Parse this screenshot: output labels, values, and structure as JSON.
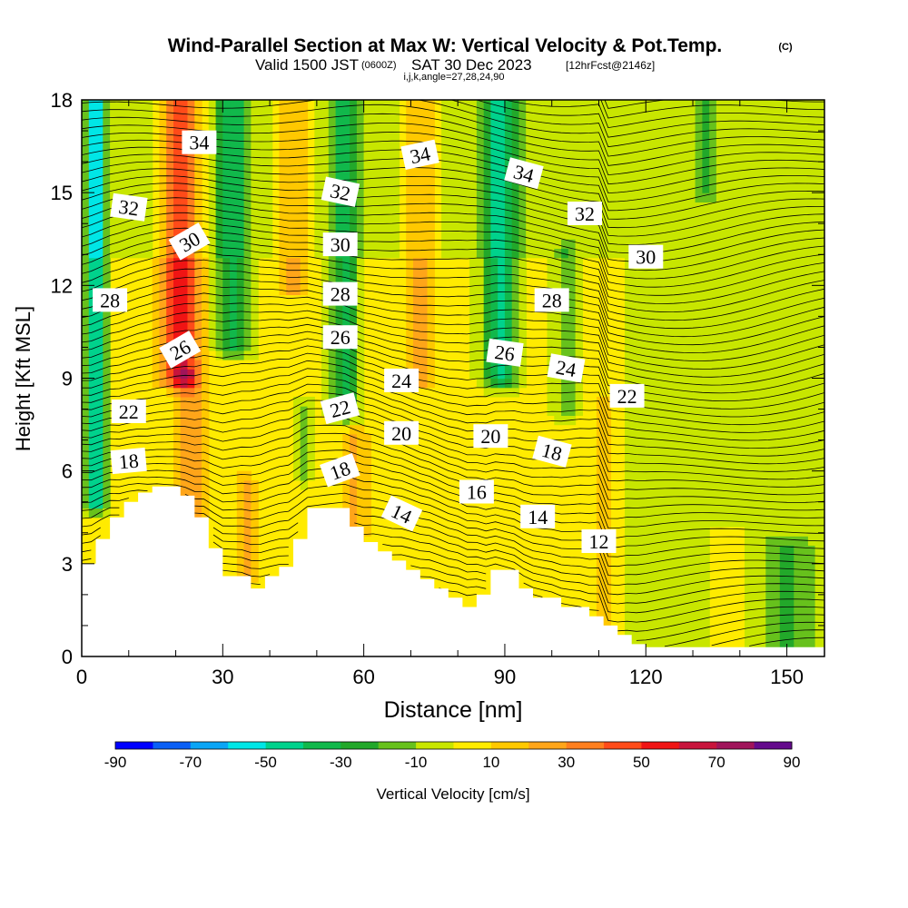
{
  "header": {
    "title": "Wind-Parallel Section at Max W: Vertical Velocity & Pot.Temp.",
    "copyright": "(C)",
    "valid_prefix": "Valid 1500 JST",
    "valid_utc": "(0600Z)",
    "valid_date": "SAT 30 Dec 2023",
    "forecast": "[12hrFcst@2146z]",
    "indices": "i,j,k,angle=27,28,24,90"
  },
  "chart_data": {
    "type": "heatmap",
    "title": "Wind-Parallel Section at Max W: Vertical Velocity & Pot.Temp.",
    "xlabel": "Distance [nm]",
    "ylabel": "Height [Kft MSL]",
    "xlim": [
      0,
      158
    ],
    "ylim": [
      0,
      18
    ],
    "x_ticks": [
      0,
      30,
      60,
      90,
      120,
      150
    ],
    "y_ticks": [
      0,
      3,
      6,
      9,
      12,
      15,
      18
    ],
    "colorbar": {
      "label": "Vertical Velocity [cm/s]",
      "tick_labels": [
        "-90",
        "-70",
        "-50",
        "-30",
        "-10",
        "10",
        "30",
        "50",
        "70",
        "90"
      ],
      "boundaries": [
        -90,
        -80,
        -70,
        -60,
        -50,
        -40,
        -30,
        -20,
        -10,
        0,
        10,
        20,
        30,
        40,
        50,
        60,
        70,
        80,
        90
      ],
      "colors": [
        "#0000ff",
        "#0a5ff5",
        "#0aa5f5",
        "#00e6e6",
        "#00d28c",
        "#11b84b",
        "#22a82a",
        "#67c11c",
        "#c8e600",
        "#ffeb00",
        "#ffc800",
        "#ffa519",
        "#ff7f1e",
        "#ff4b19",
        "#f01414",
        "#c8143c",
        "#a0145a",
        "#640a8c"
      ]
    },
    "velocity_features": [
      {
        "x": 3,
        "half_width": 2.0,
        "y_from": 5.0,
        "y_to": 18,
        "value": -55
      },
      {
        "x": 21,
        "half_width": 4.0,
        "y_from": 9.0,
        "y_to": 18,
        "value": 55
      },
      {
        "x": 23,
        "half_width": 3.0,
        "y_from": 4.5,
        "y_to": 9.0,
        "value": 25
      },
      {
        "x": 32,
        "half_width": 3.5,
        "y_from": 10.0,
        "y_to": 18,
        "value": -35
      },
      {
        "x": 35,
        "half_width": 2.0,
        "y_from": 2.5,
        "y_to": 5.5,
        "value": 25
      },
      {
        "x": 45,
        "half_width": 3.0,
        "y_from": 12.0,
        "y_to": 18,
        "value": 25
      },
      {
        "x": 47,
        "half_width": 1.5,
        "y_from": 6.0,
        "y_to": 8.0,
        "value": -20
      },
      {
        "x": 56,
        "half_width": 3.0,
        "y_from": 8.0,
        "y_to": 18,
        "value": -35
      },
      {
        "x": 58,
        "half_width": 3.0,
        "y_from": 4.0,
        "y_to": 7.0,
        "value": 20
      },
      {
        "x": 72,
        "half_width": 3.0,
        "y_from": 9.0,
        "y_to": 18,
        "value": 25
      },
      {
        "x": 89,
        "half_width": 3.5,
        "y_from": 9.0,
        "y_to": 18,
        "value": -45
      },
      {
        "x": 103,
        "half_width": 2.5,
        "y_from": 8.0,
        "y_to": 13.0,
        "value": -20
      },
      {
        "x": 111,
        "half_width": 2.5,
        "y_from": 0.5,
        "y_to": 8.0,
        "value": 15
      },
      {
        "x": 133,
        "half_width": 2.5,
        "y_from": 15.0,
        "y_to": 18,
        "value": -20
      },
      {
        "x": 137,
        "half_width": 5.0,
        "y_from": 0.3,
        "y_to": 4.0,
        "value": 15
      },
      {
        "x": 150,
        "half_width": 4.0,
        "y_from": 0.3,
        "y_to": 3.5,
        "value": -15
      }
    ],
    "terrain": {
      "x": [
        0,
        3,
        3,
        6,
        6,
        9,
        9,
        12,
        12,
        15,
        15,
        21,
        21,
        24,
        24,
        27,
        27,
        30,
        30,
        36,
        36,
        39,
        39,
        42,
        42,
        45,
        45,
        48,
        48,
        51,
        51,
        57,
        57,
        60,
        60,
        63,
        63,
        66,
        66,
        69,
        69,
        72,
        72,
        75,
        75,
        78,
        78,
        81,
        81,
        84,
        84,
        87,
        87,
        93,
        93,
        96,
        96,
        102,
        102,
        108,
        108,
        111,
        111,
        114,
        114,
        117,
        117,
        120,
        120,
        123,
        123,
        126,
        126,
        158
      ],
      "y": [
        3.0,
        3.0,
        3.8,
        3.8,
        4.5,
        4.5,
        5.0,
        5.0,
        5.3,
        5.3,
        5.5,
        5.5,
        5.2,
        5.2,
        4.5,
        4.5,
        3.5,
        3.5,
        2.6,
        2.6,
        2.2,
        2.2,
        2.6,
        2.6,
        2.9,
        2.9,
        3.8,
        3.8,
        4.8,
        4.8,
        4.8,
        4.8,
        4.2,
        4.2,
        3.7,
        3.7,
        3.4,
        3.4,
        3.1,
        3.1,
        2.8,
        2.8,
        2.5,
        2.5,
        2.2,
        2.2,
        1.9,
        1.9,
        1.6,
        1.6,
        2.0,
        2.0,
        2.8,
        2.8,
        2.2,
        2.2,
        1.9,
        1.9,
        1.6,
        1.6,
        1.3,
        1.3,
        1.0,
        1.0,
        0.7,
        0.7,
        0.4,
        0.4,
        0.3,
        0.3,
        0.3,
        0.3,
        0.3,
        0.3
      ]
    },
    "contour_labels": [
      {
        "text": "34",
        "x": 25,
        "y": 16.6,
        "angle": 0
      },
      {
        "text": "32",
        "x": 10,
        "y": 14.5,
        "angle": 8
      },
      {
        "text": "30",
        "x": 23,
        "y": 13.4,
        "angle": -30
      },
      {
        "text": "28",
        "x": 6,
        "y": 11.5,
        "angle": 0
      },
      {
        "text": "26",
        "x": 21,
        "y": 9.9,
        "angle": -30
      },
      {
        "text": "22",
        "x": 10,
        "y": 7.9,
        "angle": 0
      },
      {
        "text": "18",
        "x": 10,
        "y": 6.3,
        "angle": -5
      },
      {
        "text": "32",
        "x": 55,
        "y": 15.0,
        "angle": 12
      },
      {
        "text": "30",
        "x": 55,
        "y": 13.3,
        "angle": 0
      },
      {
        "text": "28",
        "x": 55,
        "y": 11.7,
        "angle": 0
      },
      {
        "text": "26",
        "x": 55,
        "y": 10.3,
        "angle": 0
      },
      {
        "text": "22",
        "x": 55,
        "y": 8.0,
        "angle": -15
      },
      {
        "text": "18",
        "x": 55,
        "y": 6.0,
        "angle": -20
      },
      {
        "text": "24",
        "x": 68,
        "y": 8.9,
        "angle": 0
      },
      {
        "text": "20",
        "x": 68,
        "y": 7.2,
        "angle": 0
      },
      {
        "text": "14",
        "x": 68,
        "y": 4.6,
        "angle": 25
      },
      {
        "text": "34",
        "x": 72,
        "y": 16.2,
        "angle": -12
      },
      {
        "text": "34",
        "x": 94,
        "y": 15.6,
        "angle": 15
      },
      {
        "text": "26",
        "x": 90,
        "y": 9.8,
        "angle": 8
      },
      {
        "text": "20",
        "x": 87,
        "y": 7.1,
        "angle": 0
      },
      {
        "text": "16",
        "x": 84,
        "y": 5.3,
        "angle": 0
      },
      {
        "text": "28",
        "x": 100,
        "y": 11.5,
        "angle": 0
      },
      {
        "text": "24",
        "x": 103,
        "y": 9.3,
        "angle": 10
      },
      {
        "text": "18",
        "x": 100,
        "y": 6.6,
        "angle": 15
      },
      {
        "text": "14",
        "x": 97,
        "y": 4.5,
        "angle": 0
      },
      {
        "text": "32",
        "x": 107,
        "y": 14.3,
        "angle": 0
      },
      {
        "text": "12",
        "x": 110,
        "y": 3.7,
        "angle": 0
      },
      {
        "text": "30",
        "x": 120,
        "y": 12.9,
        "angle": 0
      },
      {
        "text": "22",
        "x": 116,
        "y": 8.4,
        "angle": 0
      }
    ]
  }
}
